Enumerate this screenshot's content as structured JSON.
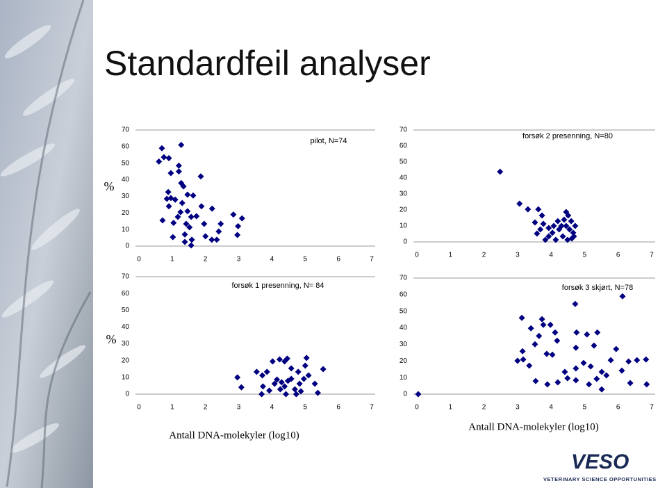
{
  "slide_title": "Standardfeil analyser",
  "logo": {
    "name": "VESO",
    "tagline": "VETERINARY SCIENCE OPPORTUNITIES"
  },
  "chart_data": [
    {
      "type": "scatter",
      "title": "pilot, N=74",
      "ylabel": "%",
      "color": "#000080",
      "x": [
        0.69,
        1.27,
        0.75,
        0.9,
        0.6,
        1.2,
        0.96,
        1.2,
        1.86,
        1.27,
        1.34,
        0.88,
        0.96,
        1.09,
        0.84,
        1.46,
        1.63,
        0.9,
        1.3,
        1.88,
        2.2,
        1.25,
        1.46,
        1.57,
        1.73,
        1.17,
        0.71,
        1.04,
        1.42,
        1.52,
        1.96,
        2.46,
        2.84,
        3.1,
        2.98,
        2.4,
        1.02,
        1.38,
        1.59,
        2.19,
        2.34,
        1.57,
        2.0,
        2.96,
        1.38
      ],
      "values": [
        59,
        61,
        53.6,
        53,
        51,
        48.5,
        44,
        45,
        42,
        38,
        36,
        32.6,
        29,
        28,
        28.5,
        31,
        30.5,
        24,
        26,
        24,
        22.6,
        20.5,
        21,
        17.6,
        18,
        17.6,
        15.5,
        14,
        13.4,
        11.3,
        13.4,
        13.4,
        19,
        16.7,
        12,
        8.8,
        5.4,
        7,
        3.8,
        3.8,
        3.8,
        0.4,
        5.9,
        6.7,
        2.5
      ],
      "xlim": [
        0,
        7
      ],
      "ylim": [
        0,
        70
      ],
      "xticks": [
        0,
        1,
        2,
        3,
        4,
        5,
        6,
        7
      ],
      "yticks": [
        0,
        10,
        20,
        30,
        40,
        50,
        60,
        70
      ]
    },
    {
      "type": "scatter",
      "title": "forsøk 2 presenning, N=80",
      "color": "#000080",
      "x": [
        2.48,
        3.06,
        3.31,
        3.62,
        3.73,
        3.52,
        3.77,
        3.58,
        3.93,
        4.08,
        4.24,
        4.39,
        4.51,
        4.6,
        4.45,
        4.55,
        4.66,
        4.35,
        4.14,
        4.49,
        4.62,
        4.72,
        4.31,
        4.2,
        4.04,
        3.83,
        4.45,
        4.68,
        3.68,
        3.93
      ],
      "values": [
        43.9,
        23.9,
        20.4,
        20.4,
        16.5,
        12.2,
        11.3,
        5.2,
        3.5,
        10,
        7.8,
        13.9,
        16.5,
        13,
        10,
        7.8,
        5.7,
        3.5,
        1.3,
        1.3,
        2.2,
        10,
        10,
        13,
        5.7,
        1.3,
        18.7,
        3.5,
        7.8,
        8.7
      ],
      "xlim": [
        0,
        7
      ],
      "ylim": [
        0,
        70
      ],
      "xticks": [
        0,
        1,
        2,
        3,
        4,
        5,
        6,
        7
      ],
      "yticks": [
        0,
        10,
        20,
        30,
        40,
        50,
        60,
        70
      ]
    },
    {
      "type": "scatter",
      "title": "forsøk 1 presenning, N= 84",
      "ylabel": "%",
      "xlabel": "Antall DNA-molekyler (log10)",
      "color": "#000080",
      "x": [
        2.96,
        3.08,
        3.54,
        3.71,
        3.85,
        4.02,
        4.23,
        4.38,
        4.46,
        5.04,
        5.0,
        5.54,
        4.58,
        4.79,
        4.15,
        4.29,
        4.38,
        4.58,
        4.69,
        4.83,
        4.96,
        3.73,
        3.92,
        3.69,
        5.29,
        5.38,
        4.08,
        4.48,
        4.25,
        4.73,
        4.42,
        4.87,
        5.1
      ],
      "values": [
        10,
        4.1,
        13.3,
        11.2,
        13.3,
        19.5,
        20.7,
        19.5,
        21.2,
        21.6,
        17,
        14.9,
        15.4,
        13.3,
        8.7,
        7.1,
        4.6,
        9.1,
        2.9,
        6.2,
        9.1,
        4.6,
        2.1,
        0,
        6.2,
        0.8,
        6.2,
        7.9,
        2.9,
        0,
        0,
        1.7,
        11.2
      ],
      "xlim": [
        0,
        7
      ],
      "ylim": [
        0,
        70
      ],
      "xticks": [
        0,
        1,
        2,
        3,
        4,
        5,
        6,
        7
      ],
      "yticks": [
        0,
        10,
        20,
        30,
        40,
        50,
        60,
        70
      ]
    },
    {
      "type": "scatter",
      "title": "forsøk 3 skjørt, N=78",
      "xlabel": "Antall DNA-molekyler (log10)",
      "color": "#000080",
      "x": [
        0.04,
        6.13,
        4.72,
        3.13,
        3.73,
        3.77,
        3.98,
        3.4,
        4.12,
        4.76,
        5.07,
        5.38,
        3.64,
        4.18,
        3.52,
        4.74,
        5.28,
        5.94,
        3.15,
        3.87,
        4.04,
        3.17,
        3.0,
        3.35,
        4.97,
        5.18,
        5.78,
        6.31,
        6.56,
        6.83,
        4.41,
        5.51,
        5.65,
        4.74,
        4.2,
        3.54,
        3.89,
        5.13,
        5.51,
        6.36,
        6.85,
        6.11,
        4.49,
        4.74,
        5.36
      ],
      "values": [
        0,
        59,
        54.4,
        46,
        45.2,
        41.8,
        41.8,
        39.7,
        37.2,
        37.2,
        36,
        37.2,
        35.1,
        32.2,
        30.1,
        28,
        29.3,
        27.2,
        25.9,
        24.3,
        23.8,
        20.9,
        20.1,
        17.2,
        18.8,
        16.7,
        20.5,
        19.7,
        20.5,
        20.9,
        13.4,
        13.4,
        11.3,
        8.4,
        7.1,
        7.9,
        5.9,
        5.9,
        2.9,
        6.7,
        5.9,
        14.2,
        9.6,
        15.5,
        9.2
      ],
      "xlim": [
        0,
        7
      ],
      "ylim": [
        0,
        70
      ],
      "xticks": [
        0,
        1,
        2,
        3,
        4,
        5,
        6,
        7
      ],
      "yticks": [
        0,
        10,
        20,
        30,
        40,
        50,
        60,
        70
      ]
    }
  ]
}
